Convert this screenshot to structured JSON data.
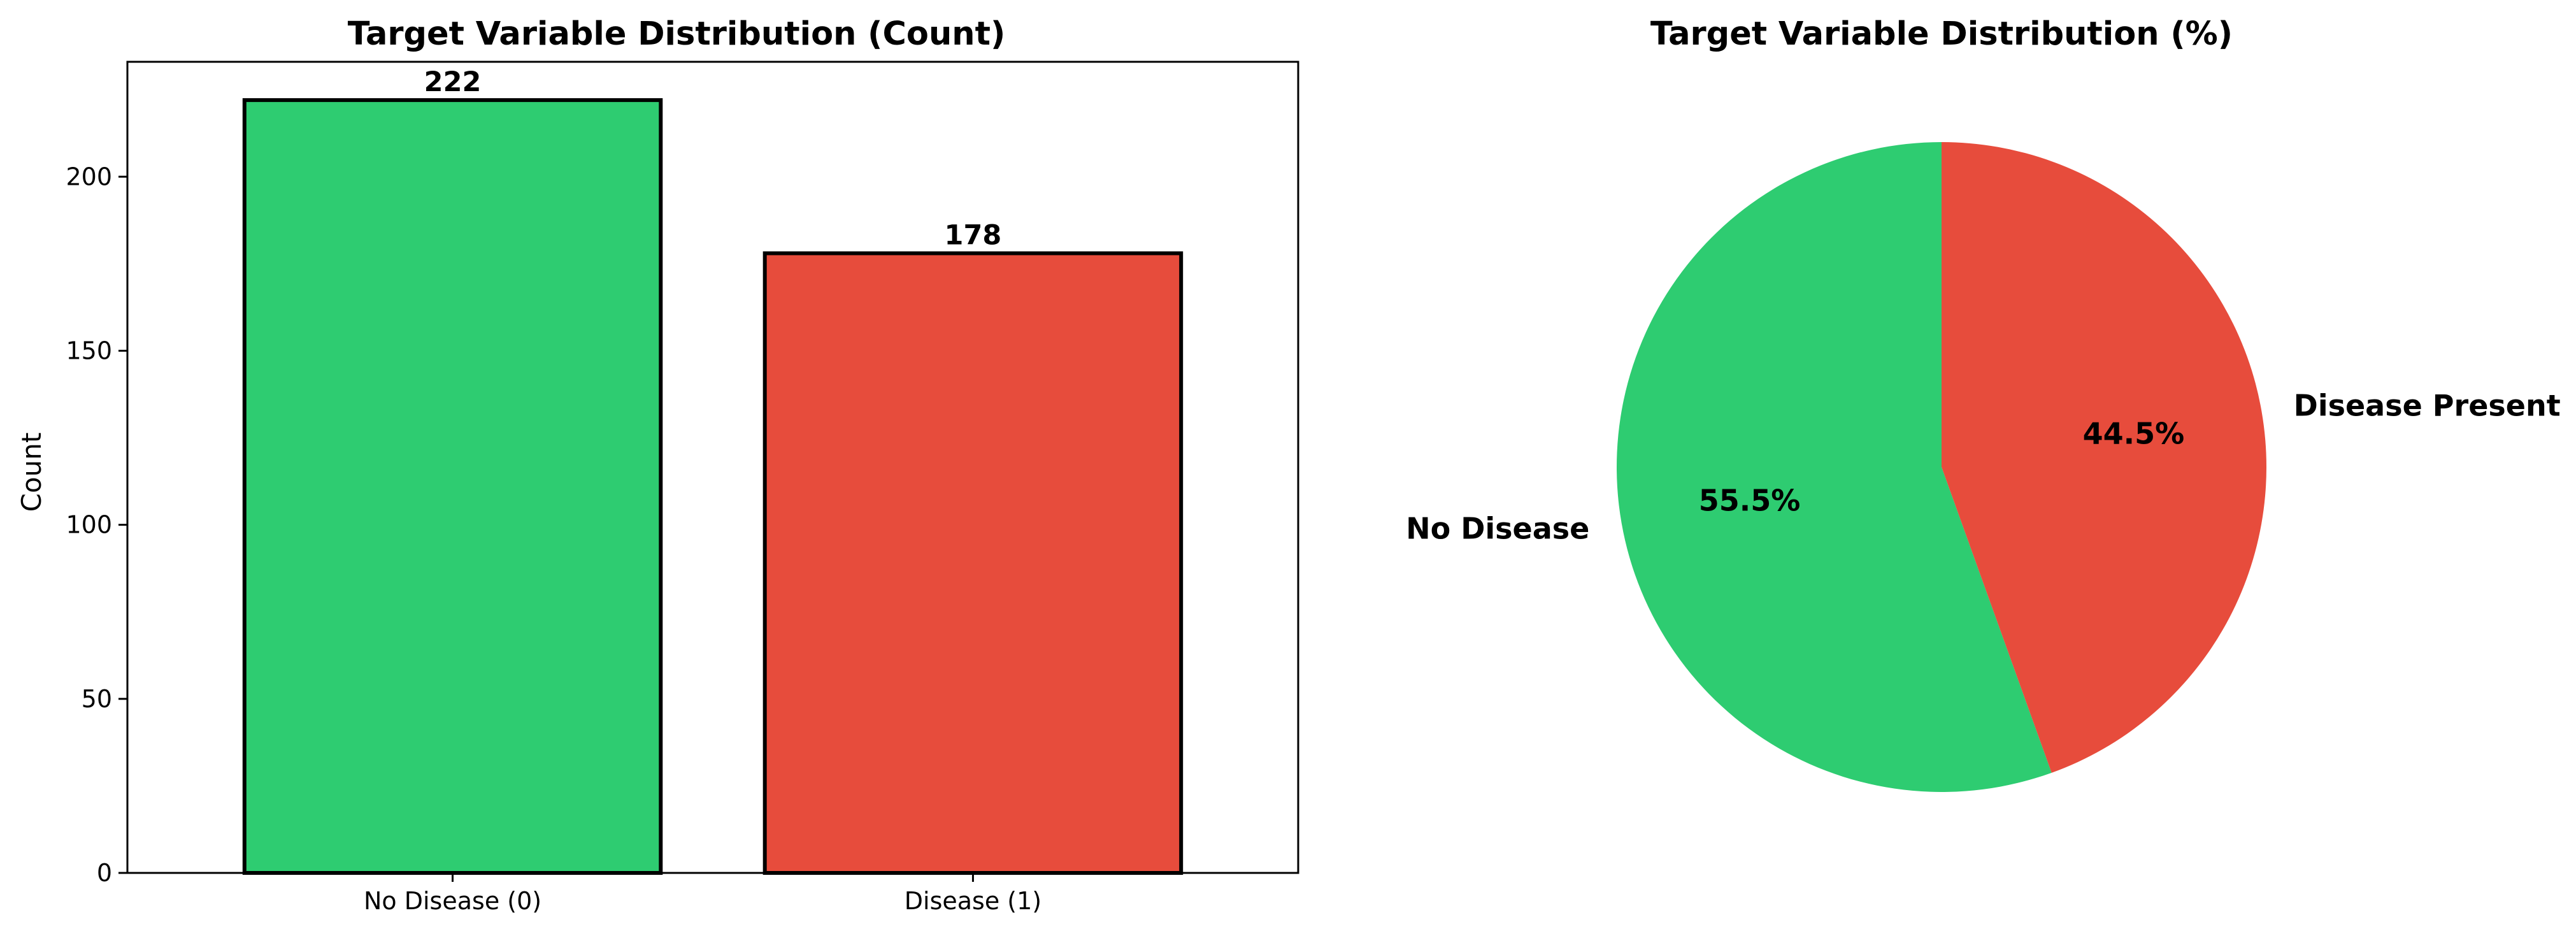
{
  "chart_data": [
    {
      "type": "bar",
      "title": "Target Variable Distribution (Count)",
      "categories": [
        "No Disease (0)",
        "Disease (1)"
      ],
      "values": [
        222,
        178
      ],
      "value_labels": [
        "222",
        "178"
      ],
      "colors": [
        "#2ecc71",
        "#e74c3c"
      ],
      "xlabel": "",
      "ylabel": "Count",
      "ylim": [
        0,
        233
      ],
      "yticks": [
        0,
        50,
        100,
        150,
        200
      ],
      "ytick_labels": [
        "0",
        "50",
        "100",
        "150",
        "200"
      ],
      "grid": false
    },
    {
      "type": "pie",
      "title": "Target Variable Distribution (%)",
      "labels": [
        "No Disease",
        "Disease Present"
      ],
      "values": [
        55.5,
        44.5
      ],
      "pct_labels": [
        "55.5%",
        "44.5%"
      ],
      "colors": [
        "#2ecc71",
        "#e74c3c"
      ],
      "start_angle": 90,
      "direction": "counterclockwise"
    }
  ]
}
